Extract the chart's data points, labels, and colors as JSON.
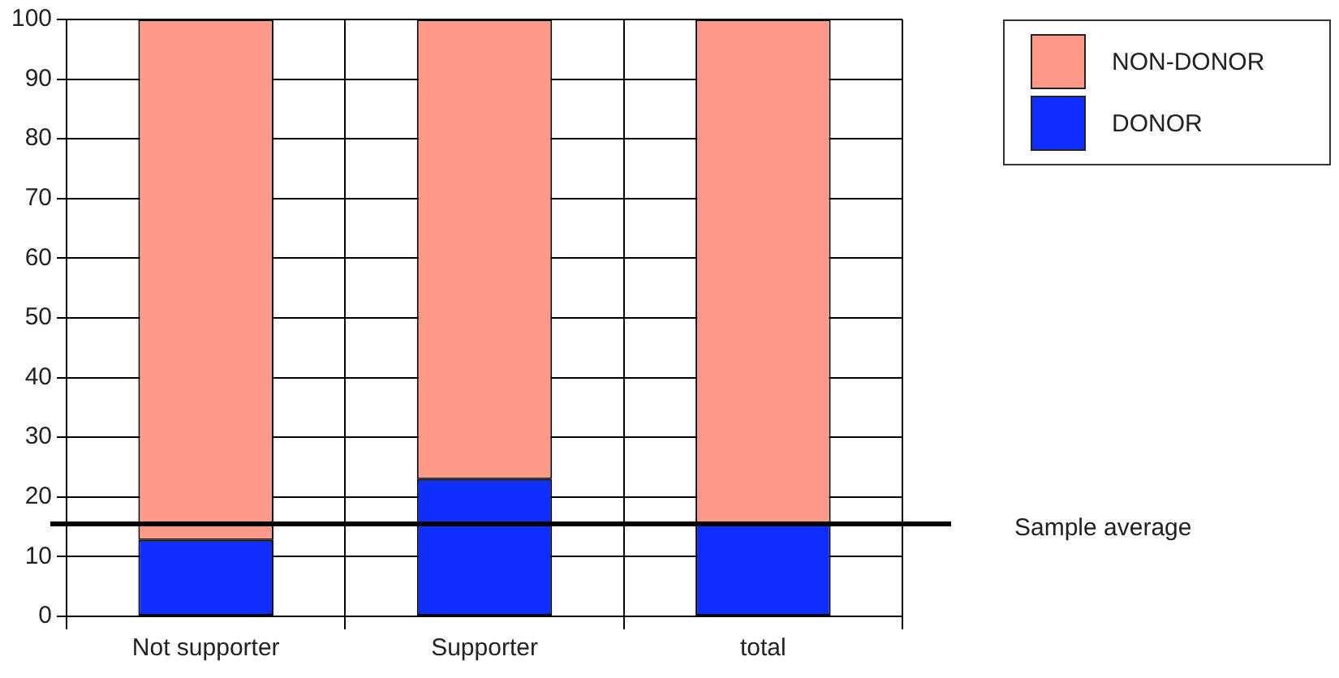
{
  "chart_data": {
    "type": "bar",
    "stacked": true,
    "categories": [
      "Not supporter",
      "Supporter",
      "total"
    ],
    "series": [
      {
        "name": "DONOR",
        "color": "#0f2fff",
        "values": [
          12.8,
          23,
          15.5
        ]
      },
      {
        "name": "NON-DONOR",
        "color": "#ff9a8a",
        "values": [
          87.2,
          77,
          84.5
        ]
      }
    ],
    "ylim": [
      0,
      100
    ],
    "yticks": [
      0,
      10,
      20,
      30,
      40,
      50,
      60,
      70,
      80,
      90,
      100
    ],
    "grid": true,
    "legend": "top right",
    "ref_lines": [
      {
        "axis": "y",
        "value": 15.5,
        "label": "Sample average",
        "color": "#000000"
      }
    ]
  }
}
